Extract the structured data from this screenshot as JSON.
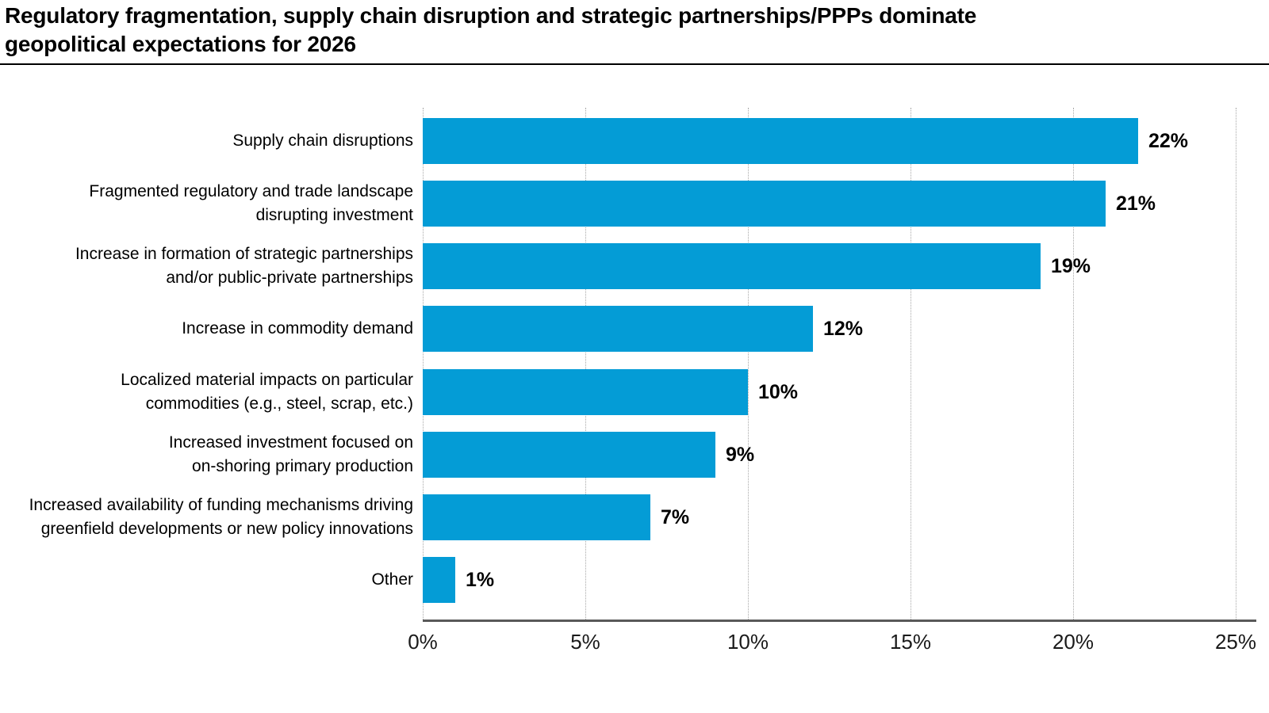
{
  "header": {
    "title_lines": [
      "Regulatory fragmentation, supply chain disruption and strategic partnerships/PPPs dominate",
      "geopolitical expectations for 2026"
    ]
  },
  "colors": {
    "bar": "#049cd6",
    "title_text": "#000000",
    "axis_line": "#595959",
    "gridline": "#a8a8a8",
    "label_text": "#000000"
  },
  "chart_data": {
    "type": "bar",
    "orientation": "horizontal",
    "title": "Regulatory fragmentation, supply chain disruption and strategic partnerships/PPPs dominate geopolitical expectations for 2026",
    "categories": [
      "Supply chain disruptions",
      "Fragmented regulatory and trade landscape disrupting investment",
      "Increase in formation of strategic partnerships and/or public-private partnerships",
      "Increase in commodity demand",
      "Localized material impacts on particular commodities (e.g., steel, scrap, etc.)",
      "Increased investment focused on on-shoring primary production",
      "Increased availability of funding mechanisms driving greenfield developments or new policy innovations",
      "Other"
    ],
    "category_lines": [
      [
        "Supply chain disruptions"
      ],
      [
        "Fragmented regulatory and trade landscape",
        "disrupting investment"
      ],
      [
        "Increase in formation of strategic partnerships",
        "and/or public-private partnerships"
      ],
      [
        "Increase in commodity demand"
      ],
      [
        "Localized material impacts on particular",
        "commodities (e.g., steel, scrap, etc.)"
      ],
      [
        "Increased investment focused on",
        "on-shoring primary production"
      ],
      [
        "Increased availability of funding mechanisms driving",
        "greenfield developments or new policy innovations"
      ],
      [
        "Other"
      ]
    ],
    "values": [
      22,
      21,
      19,
      12,
      10,
      9,
      7,
      1
    ],
    "value_labels": [
      "22%",
      "21%",
      "19%",
      "12%",
      "10%",
      "9%",
      "7%",
      "1%"
    ],
    "xlabel": "",
    "ylabel": "",
    "xlim": [
      0,
      25
    ],
    "xticks": {
      "values": [
        0,
        5,
        10,
        15,
        20,
        25
      ],
      "labels": [
        "0%",
        "5%",
        "10%",
        "15%",
        "20%",
        "25%"
      ]
    },
    "grid": "vertical-dotted",
    "legend": "none"
  }
}
